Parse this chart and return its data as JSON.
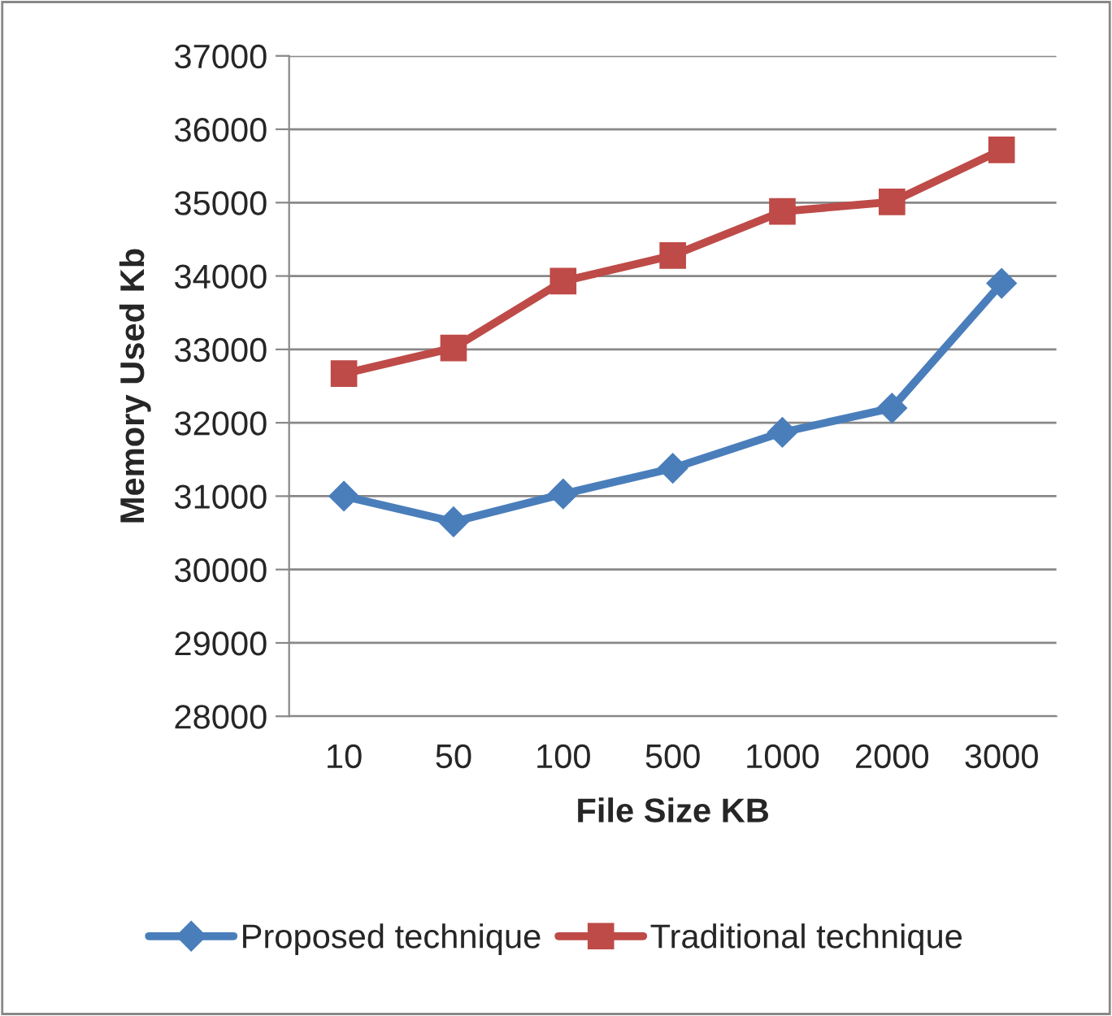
{
  "chart_data": {
    "type": "line",
    "xlabel": "File Size KB",
    "ylabel": "Memory Used Kb",
    "categories": [
      "10",
      "50",
      "100",
      "500",
      "1000",
      "2000",
      "3000"
    ],
    "series": [
      {
        "name": "Proposed technique",
        "color": "#4a7ebb",
        "marker": "diamond",
        "values": [
          31000,
          30650,
          31030,
          31380,
          31870,
          32200,
          33900
        ]
      },
      {
        "name": "Traditional technique",
        "color": "#be4b48",
        "marker": "square",
        "values": [
          32670,
          33020,
          33930,
          34280,
          34880,
          35010,
          35720
        ]
      }
    ],
    "ylim": [
      28000,
      37000
    ],
    "yticks": [
      28000,
      29000,
      30000,
      31000,
      32000,
      33000,
      34000,
      35000,
      36000,
      37000
    ],
    "grid": "y",
    "legend": "bottom",
    "line_style": "solid"
  }
}
